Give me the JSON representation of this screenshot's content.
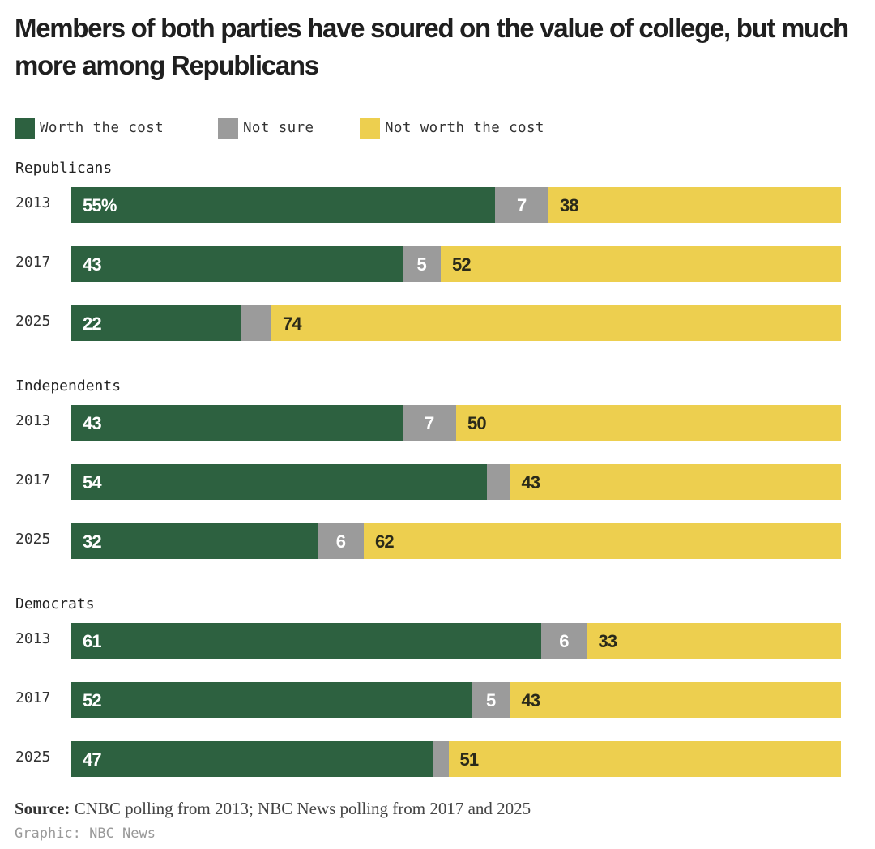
{
  "title": "Members of both parties have soured on the value of college, but much more among Republicans",
  "colors": {
    "worth": "#2d6140",
    "not_sure": "#9b9b9b",
    "not_worth": "#edcf4f"
  },
  "legend": [
    {
      "key": "worth",
      "label": "Worth the cost"
    },
    {
      "key": "not_sure",
      "label": "Not sure"
    },
    {
      "key": "not_worth",
      "label": "Not worth the cost"
    }
  ],
  "chart_data": {
    "type": "bar",
    "orientation": "horizontal",
    "stacked": true,
    "title": "Members of both parties have soured on the value of college, but much more among Republicans",
    "xlabel": "",
    "ylabel": "",
    "xlim": [
      0,
      100
    ],
    "unit": "%",
    "grid": false,
    "legend_position": "top-left",
    "series_names": [
      "Worth the cost",
      "Not sure",
      "Not worth the cost"
    ],
    "groups": [
      {
        "name": "Republicans",
        "rows": [
          {
            "year": "2013",
            "worth": 55,
            "not_sure": 7,
            "not_worth": 38,
            "labels": [
              "55%",
              "7",
              "38"
            ]
          },
          {
            "year": "2017",
            "worth": 43,
            "not_sure": 5,
            "not_worth": 52,
            "labels": [
              "43",
              "5",
              "52"
            ]
          },
          {
            "year": "2025",
            "worth": 22,
            "not_sure": 4,
            "not_worth": 74,
            "labels": [
              "22",
              "",
              "74"
            ]
          }
        ]
      },
      {
        "name": "Independents",
        "rows": [
          {
            "year": "2013",
            "worth": 43,
            "not_sure": 7,
            "not_worth": 50,
            "labels": [
              "43",
              "7",
              "50"
            ]
          },
          {
            "year": "2017",
            "worth": 54,
            "not_sure": 3,
            "not_worth": 43,
            "labels": [
              "54",
              "",
              "43"
            ]
          },
          {
            "year": "2025",
            "worth": 32,
            "not_sure": 6,
            "not_worth": 62,
            "labels": [
              "32",
              "6",
              "62"
            ]
          }
        ]
      },
      {
        "name": "Democrats",
        "rows": [
          {
            "year": "2013",
            "worth": 61,
            "not_sure": 6,
            "not_worth": 33,
            "labels": [
              "61",
              "6",
              "33"
            ]
          },
          {
            "year": "2017",
            "worth": 52,
            "not_sure": 5,
            "not_worth": 43,
            "labels": [
              "52",
              "5",
              "43"
            ]
          },
          {
            "year": "2025",
            "worth": 47,
            "not_sure": 2,
            "not_worth": 51,
            "labels": [
              "47",
              "",
              "51"
            ]
          }
        ]
      }
    ]
  },
  "footer": {
    "source_label": "Source:",
    "source_text": " CNBC polling from 2013; NBC News polling from 2017 and 2025",
    "credit": "Graphic: NBC News"
  }
}
